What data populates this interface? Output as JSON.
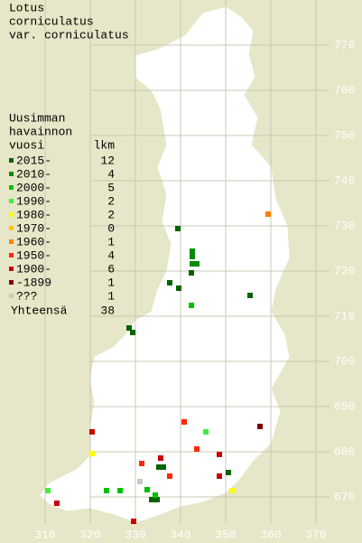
{
  "title": [
    "Lotus",
    "corniculatus",
    "var. corniculatus"
  ],
  "legend": {
    "header": [
      "Uusimman",
      "havainnon",
      "vuosi"
    ],
    "count_header": "lkm",
    "items": [
      {
        "label": "2015-",
        "count": 12,
        "color": "#006400",
        "points": [
          [
            339.4,
            729.4
          ],
          [
            342.4,
            719.6
          ],
          [
            337.6,
            717.4
          ],
          [
            339.6,
            716.2
          ],
          [
            355.4,
            714.6
          ],
          [
            328.6,
            707.4
          ],
          [
            329.4,
            706.4
          ],
          [
            335.2,
            676.6
          ],
          [
            336.2,
            676.6
          ],
          [
            350.6,
            675.4
          ],
          [
            333.6,
            669.4
          ],
          [
            334.8,
            669.4
          ]
        ]
      },
      {
        "label": "2010-",
        "count": 4,
        "color": "#008c00",
        "points": [
          [
            342.6,
            724.4
          ],
          [
            342.6,
            723.2
          ],
          [
            342.6,
            721.6
          ],
          [
            343.6,
            721.6
          ]
        ]
      },
      {
        "label": "2000-",
        "count": 5,
        "color": "#00c000",
        "points": [
          [
            342.4,
            712.4
          ],
          [
            332.6,
            671.6
          ],
          [
            323.6,
            671.4
          ],
          [
            326.6,
            671.4
          ],
          [
            334.4,
            670.4
          ]
        ]
      },
      {
        "label": "1990-",
        "count": 2,
        "color": "#40f040",
        "points": [
          [
            345.6,
            684.4
          ],
          [
            310.6,
            671.4
          ]
        ]
      },
      {
        "label": "1980-",
        "count": 2,
        "color": "#ffff00",
        "points": [
          [
            320.4,
            679.6
          ],
          [
            351.4,
            671.4
          ]
        ]
      },
      {
        "label": "1970-",
        "count": 0,
        "color": "#ffc800",
        "points": []
      },
      {
        "label": "1960-",
        "count": 1,
        "color": "#ff8000",
        "points": [
          [
            359.4,
            732.6
          ]
        ]
      },
      {
        "label": "1950-",
        "count": 4,
        "color": "#ff2800",
        "points": [
          [
            340.8,
            686.6
          ],
          [
            343.6,
            680.6
          ],
          [
            331.4,
            677.4
          ],
          [
            337.6,
            674.6
          ]
        ]
      },
      {
        "label": "1900-",
        "count": 6,
        "color": "#c80000",
        "points": [
          [
            320.4,
            684.4
          ],
          [
            335.6,
            678.6
          ],
          [
            348.6,
            679.4
          ],
          [
            312.6,
            668.6
          ],
          [
            348.6,
            674.6
          ],
          [
            329.6,
            664.6
          ]
        ]
      },
      {
        "label": "-1899",
        "count": 1,
        "color": "#800000",
        "points": [
          [
            357.6,
            685.6
          ]
        ]
      },
      {
        "label": "???",
        "count": 1,
        "color": "#c8c8c8",
        "points": [
          [
            331.0,
            673.4
          ]
        ]
      }
    ],
    "total_label": "Yhteensä",
    "total": 38
  },
  "axes": {
    "xticks": [
      310,
      320,
      330,
      340,
      350,
      360,
      370
    ],
    "yticks": [
      670,
      680,
      690,
      700,
      710,
      720,
      730,
      740,
      750,
      760,
      770
    ]
  }
}
